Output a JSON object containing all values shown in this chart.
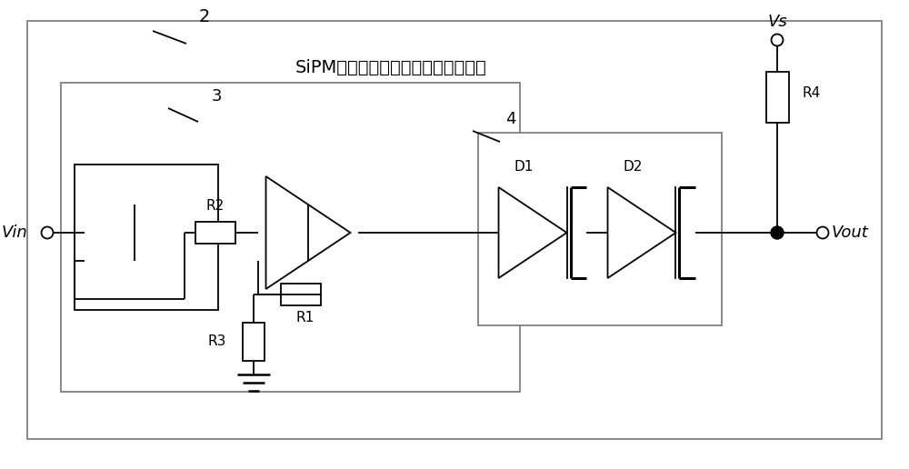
{
  "bg_color": "#ffffff",
  "line_color": "#000000",
  "title": "SiPM增益控制装置（温度补偿模块）",
  "label_2": "2",
  "label_3": "3",
  "label_4": "4",
  "label_Vin": "Vin",
  "label_Vout": "Vout",
  "label_Vs": "Vs",
  "label_R1": "R1",
  "label_R2": "R2",
  "label_R3": "R3",
  "label_R4": "R4",
  "label_D1": "D1",
  "label_D2": "D2",
  "font_chinese": "SimHei",
  "lw": 1.3
}
